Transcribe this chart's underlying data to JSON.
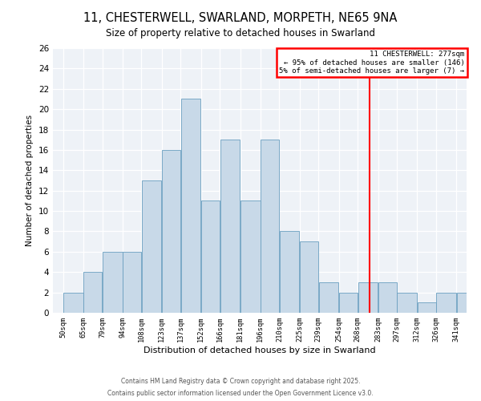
{
  "title_line1": "11, CHESTERWELL, SWARLAND, MORPETH, NE65 9NA",
  "title_line2": "Size of property relative to detached houses in Swarland",
  "xlabel": "Distribution of detached houses by size in Swarland",
  "ylabel": "Number of detached properties",
  "bins": [
    50,
    65,
    79,
    94,
    108,
    123,
    137,
    152,
    166,
    181,
    196,
    210,
    225,
    239,
    254,
    268,
    283,
    297,
    312,
    326,
    341
  ],
  "heights": [
    2,
    4,
    6,
    6,
    13,
    16,
    21,
    11,
    17,
    11,
    17,
    8,
    7,
    3,
    2,
    3,
    3,
    2,
    1,
    2,
    2
  ],
  "bar_color": "#c8d9e8",
  "bar_edge_color": "#6a9fc0",
  "red_line_x": 277,
  "annotation_title": "11 CHESTERWELL: 277sqm",
  "annotation_line1": "← 95% of detached houses are smaller (146)",
  "annotation_line2": "5% of semi-detached houses are larger (7) →",
  "ylim": [
    0,
    26
  ],
  "yticks": [
    0,
    2,
    4,
    6,
    8,
    10,
    12,
    14,
    16,
    18,
    20,
    22,
    24,
    26
  ],
  "footer_line1": "Contains HM Land Registry data © Crown copyright and database right 2025.",
  "footer_line2": "Contains public sector information licensed under the Open Government Licence v3.0.",
  "bg_color": "#eef2f7",
  "grid_color": "#ffffff"
}
